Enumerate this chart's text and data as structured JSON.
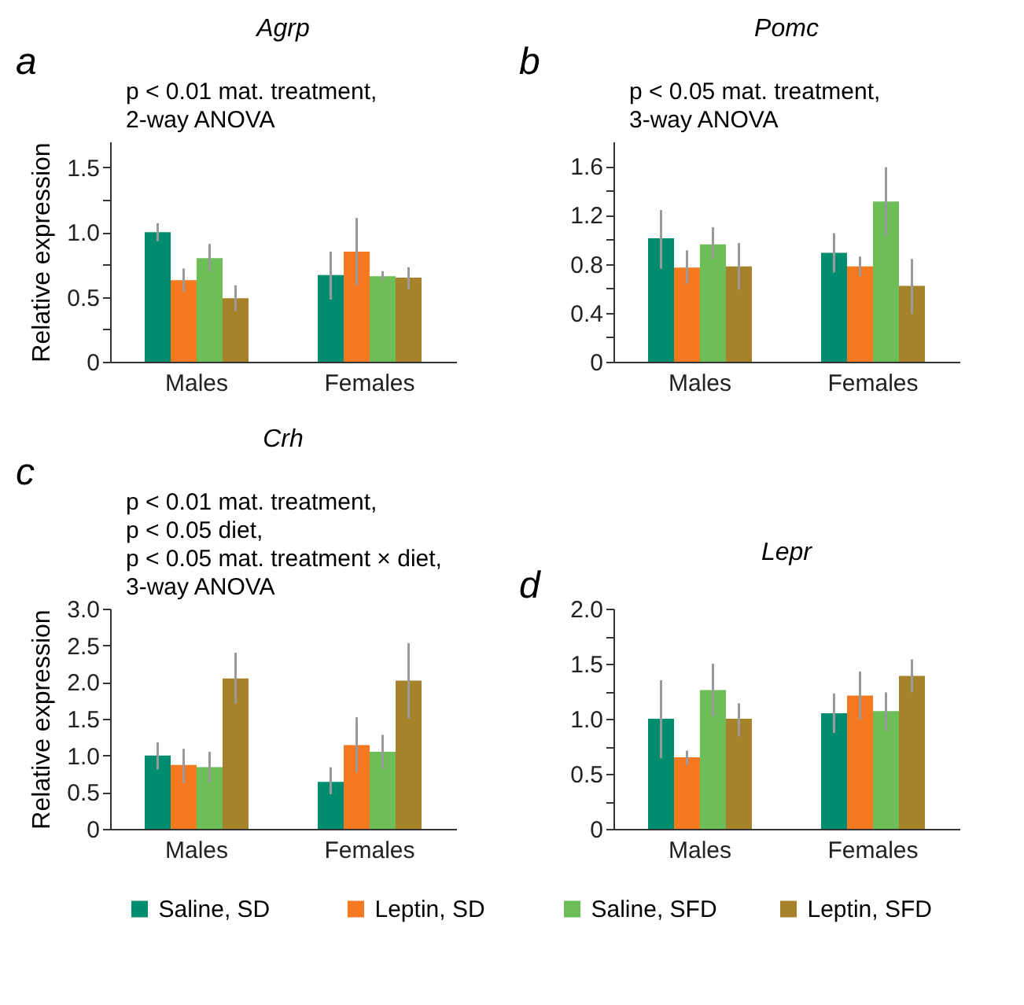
{
  "chart_data": [
    {
      "type": "bar",
      "title": "Agrp",
      "ylabel": "Relative expression",
      "categories": [
        "Males",
        "Females"
      ],
      "ylim": [
        0,
        1.7
      ],
      "yticks": [
        0,
        {
          "value": 0.25,
          "label": null
        },
        0.5,
        {
          "value": 0.75,
          "label": null
        },
        {
          "value": 1,
          "label": "1.0"
        },
        {
          "value": 1.25,
          "label": null
        },
        1.5
      ],
      "annotations": [
        "a",
        "p < 0.01 mat. treatment,",
        "2-way ANOVA"
      ],
      "series": [
        {
          "color": "#008c6e",
          "values": [
            1.0,
            0.67
          ],
          "errors": [
            [
              0.93,
              1.07
            ],
            [
              0.48,
              0.85
            ]
          ]
        },
        {
          "color": "#f47920",
          "values": [
            0.63,
            0.85
          ],
          "errors": [
            [
              0.54,
              0.72
            ],
            [
              0.59,
              1.11
            ]
          ]
        },
        {
          "color": "#6dbe56",
          "values": [
            0.8,
            0.66
          ],
          "errors": [
            [
              0.7,
              0.91
            ],
            [
              0.63,
              0.7
            ]
          ]
        },
        {
          "color": "#a6822a",
          "values": [
            0.49,
            0.65
          ],
          "errors": [
            [
              0.39,
              0.59
            ],
            [
              0.56,
              0.73
            ]
          ]
        }
      ]
    },
    {
      "type": "bar",
      "title": "Pomc",
      "categories": [
        "Males",
        "Females"
      ],
      "ylim": [
        0,
        1.8
      ],
      "yticks": [
        0,
        {
          "value": 0.2,
          "label": null
        },
        0.4,
        {
          "value": 0.6,
          "label": null
        },
        0.8,
        {
          "value": 1,
          "label": null
        },
        1.2,
        {
          "value": 1.4,
          "label": null
        },
        1.6
      ],
      "annotations": [
        "b",
        "p < 0.05 mat. treatment,",
        "3-way ANOVA"
      ],
      "series": [
        {
          "color": "#008c6e",
          "values": [
            1.01,
            0.89
          ],
          "errors": [
            [
              0.76,
              1.24
            ],
            [
              0.73,
              1.05
            ]
          ]
        },
        {
          "color": "#f47920",
          "values": [
            0.77,
            0.78
          ],
          "errors": [
            [
              0.64,
              0.91
            ],
            [
              0.7,
              0.86
            ]
          ]
        },
        {
          "color": "#6dbe56",
          "values": [
            0.96,
            1.31
          ],
          "errors": [
            [
              0.84,
              1.1
            ],
            [
              1.03,
              1.59
            ]
          ]
        },
        {
          "color": "#a6822a",
          "values": [
            0.78,
            0.62
          ],
          "errors": [
            [
              0.59,
              0.97
            ],
            [
              0.39,
              0.84
            ]
          ]
        }
      ]
    },
    {
      "type": "bar",
      "title": "Crh",
      "ylabel": "Relative expression",
      "categories": [
        "Males",
        "Females"
      ],
      "ylim": [
        0,
        3
      ],
      "yticks": [
        0,
        0.5,
        {
          "value": 1,
          "label": "1.0"
        },
        1.5,
        {
          "value": 2,
          "label": "2.0"
        },
        2.5,
        {
          "value": 3,
          "label": "3.0"
        }
      ],
      "annotations": [
        "c",
        "p < 0.01 mat. treatment,",
        "p < 0.05 diet,",
        "p < 0.05 mat. treatment × diet,",
        "3-way ANOVA"
      ],
      "legend": "bottom",
      "series": [
        {
          "name": "Saline, SD",
          "color": "#008c6e",
          "values": [
            1.0,
            0.64
          ],
          "errors": [
            [
              0.81,
              1.18
            ],
            [
              0.47,
              0.84
            ]
          ]
        },
        {
          "name": "Leptin, SD",
          "color": "#f47920",
          "values": [
            0.87,
            1.14
          ],
          "errors": [
            [
              0.62,
              1.09
            ],
            [
              0.77,
              1.52
            ]
          ]
        },
        {
          "name": "Saline, SFD",
          "color": "#6dbe56",
          "values": [
            0.84,
            1.05
          ],
          "errors": [
            [
              0.63,
              1.05
            ],
            [
              0.81,
              1.28
            ]
          ]
        },
        {
          "name": "Leptin, SFD",
          "color": "#a6822a",
          "values": [
            2.05,
            2.02
          ],
          "errors": [
            [
              1.71,
              2.4
            ],
            [
              1.5,
              2.53
            ]
          ]
        }
      ]
    },
    {
      "type": "bar",
      "title": "Lepr",
      "categories": [
        "Males",
        "Females"
      ],
      "ylim": [
        0,
        2
      ],
      "yticks": [
        0,
        {
          "value": 0.25,
          "label": null
        },
        0.5,
        {
          "value": 0.75,
          "label": null
        },
        {
          "value": 1,
          "label": "1.0"
        },
        {
          "value": 1.25,
          "label": null
        },
        1.5,
        {
          "value": 1.75,
          "label": null
        },
        {
          "value": 2,
          "label": "2.0"
        }
      ],
      "annotations": [
        "d"
      ],
      "series": [
        {
          "color": "#008c6e",
          "values": [
            1.0,
            1.05
          ],
          "errors": [
            [
              0.64,
              1.35
            ],
            [
              0.87,
              1.23
            ]
          ]
        },
        {
          "color": "#f47920",
          "values": [
            0.65,
            1.21
          ],
          "errors": [
            [
              0.58,
              0.71
            ],
            [
              0.99,
              1.43
            ]
          ]
        },
        {
          "color": "#6dbe56",
          "values": [
            1.26,
            1.07
          ],
          "errors": [
            [
              1.02,
              1.5
            ],
            [
              0.89,
              1.24
            ]
          ]
        },
        {
          "color": "#a6822a",
          "values": [
            1.0,
            1.39
          ],
          "errors": [
            [
              0.84,
              1.14
            ],
            [
              1.24,
              1.54
            ]
          ]
        }
      ]
    }
  ]
}
